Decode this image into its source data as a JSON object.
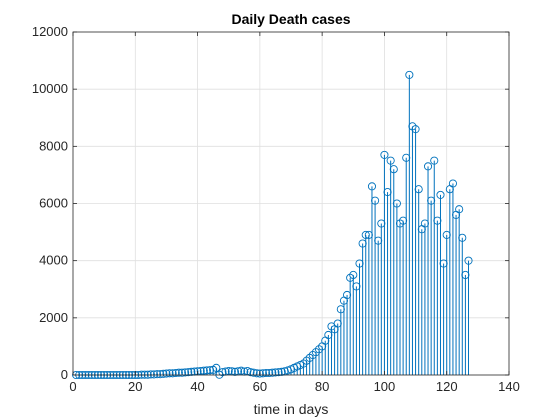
{
  "chart_data": {
    "type": "stem",
    "title": "Daily Death cases",
    "xlabel": "time in days",
    "ylabel": "",
    "xlim": [
      0,
      140
    ],
    "ylim": [
      0,
      12000
    ],
    "xticks": [
      0,
      20,
      40,
      60,
      80,
      100,
      120,
      140
    ],
    "yticks": [
      0,
      2000,
      4000,
      6000,
      8000,
      10000,
      12000
    ],
    "grid": true,
    "color": "#0072BD",
    "x": [
      1,
      2,
      3,
      4,
      5,
      6,
      7,
      8,
      9,
      10,
      11,
      12,
      13,
      14,
      15,
      16,
      17,
      18,
      19,
      20,
      21,
      22,
      23,
      24,
      25,
      26,
      27,
      28,
      29,
      30,
      31,
      32,
      33,
      34,
      35,
      36,
      37,
      38,
      39,
      40,
      41,
      42,
      43,
      44,
      45,
      46,
      47,
      48,
      49,
      50,
      51,
      52,
      53,
      54,
      55,
      56,
      57,
      58,
      59,
      60,
      61,
      62,
      63,
      64,
      65,
      66,
      67,
      68,
      69,
      70,
      71,
      72,
      73,
      74,
      75,
      76,
      77,
      78,
      79,
      80,
      81,
      82,
      83,
      84,
      85,
      86,
      87,
      88,
      89,
      90,
      91,
      92,
      93,
      94,
      95,
      96,
      97,
      98,
      99,
      100,
      101,
      102,
      103,
      104,
      105,
      106,
      107,
      108,
      109,
      110,
      111,
      112,
      113,
      114,
      115,
      116,
      117,
      118,
      119,
      120,
      121,
      122,
      123,
      124,
      125,
      126,
      127
    ],
    "y": [
      0,
      0,
      0,
      0,
      0,
      0,
      0,
      0,
      0,
      0,
      0,
      0,
      0,
      0,
      0,
      0,
      0,
      0,
      0,
      0,
      0,
      10,
      10,
      10,
      20,
      20,
      30,
      30,
      40,
      50,
      60,
      60,
      70,
      80,
      80,
      90,
      100,
      110,
      120,
      130,
      140,
      150,
      160,
      170,
      180,
      250,
      10,
      100,
      120,
      140,
      130,
      110,
      130,
      150,
      120,
      140,
      100,
      80,
      60,
      50,
      60,
      70,
      70,
      80,
      90,
      100,
      110,
      130,
      160,
      200,
      250,
      300,
      350,
      400,
      500,
      600,
      700,
      800,
      900,
      1000,
      1200,
      1400,
      1700,
      1600,
      1800,
      2300,
      2600,
      2800,
      3400,
      3500,
      3100,
      3900,
      4600,
      4900,
      4900,
      6600,
      6100,
      4700,
      5300,
      7700,
      6400,
      7500,
      7200,
      6000,
      5300,
      5400,
      7600,
      10500,
      8700,
      8600,
      6500,
      5100,
      5300,
      7300,
      6100,
      7500,
      5400,
      6300,
      3900,
      4900,
      6500,
      6700,
      5600,
      5800,
      4800,
      3500,
      4000
    ]
  }
}
